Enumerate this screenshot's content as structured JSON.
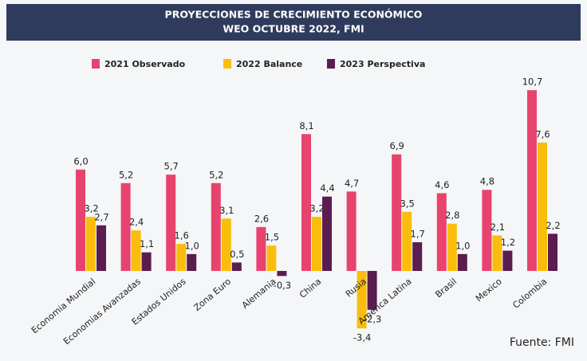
{
  "chart_data": {
    "type": "bar",
    "title": [
      "PROYECCIONES DE CRECIMIENTO ECONÓMICO",
      "WEO OCTUBRE 2022, FMI"
    ],
    "source": "Fuente: FMI",
    "categories": [
      "Economia Mundial",
      "Economias Avanzadas",
      "Estados Unidos",
      "Zona Euro",
      "Alemania",
      "China",
      "Rusia",
      "America Latina",
      "Brasil",
      "Mexico",
      "Colombia"
    ],
    "series": [
      {
        "name": "2021 Observado",
        "color": "#e8436e",
        "values": [
          6.0,
          5.2,
          5.7,
          5.2,
          2.6,
          8.1,
          4.7,
          6.9,
          4.6,
          4.8,
          10.7
        ],
        "value_labels": [
          "6,0",
          "5,2",
          "5,7",
          "5,2",
          "2,6",
          "8,1",
          "4,7",
          "6,9",
          "4,6",
          "4,8",
          "10,7"
        ]
      },
      {
        "name": "2022 Balance",
        "color": "#fbbd0c",
        "values": [
          3.2,
          2.4,
          1.6,
          3.1,
          1.5,
          3.2,
          -3.4,
          3.5,
          2.8,
          2.1,
          7.6
        ],
        "value_labels": [
          "3,2",
          "2,4",
          "1,6",
          "3,1",
          "1,5",
          "3,2",
          "-3,4",
          "3,5",
          "2,8",
          "2,1",
          "7,6"
        ]
      },
      {
        "name": "2023 Perspectiva",
        "color": "#5b1c50",
        "values": [
          2.7,
          1.1,
          1.0,
          0.5,
          -0.3,
          4.4,
          -2.3,
          1.7,
          1.0,
          1.2,
          2.2
        ],
        "value_labels": [
          "2,7",
          "1,1",
          "1,0",
          "0,5",
          "-0,3",
          "4,4",
          "-2,3",
          "1,7",
          "1,0",
          "1,2",
          "2,2"
        ]
      }
    ]
  }
}
